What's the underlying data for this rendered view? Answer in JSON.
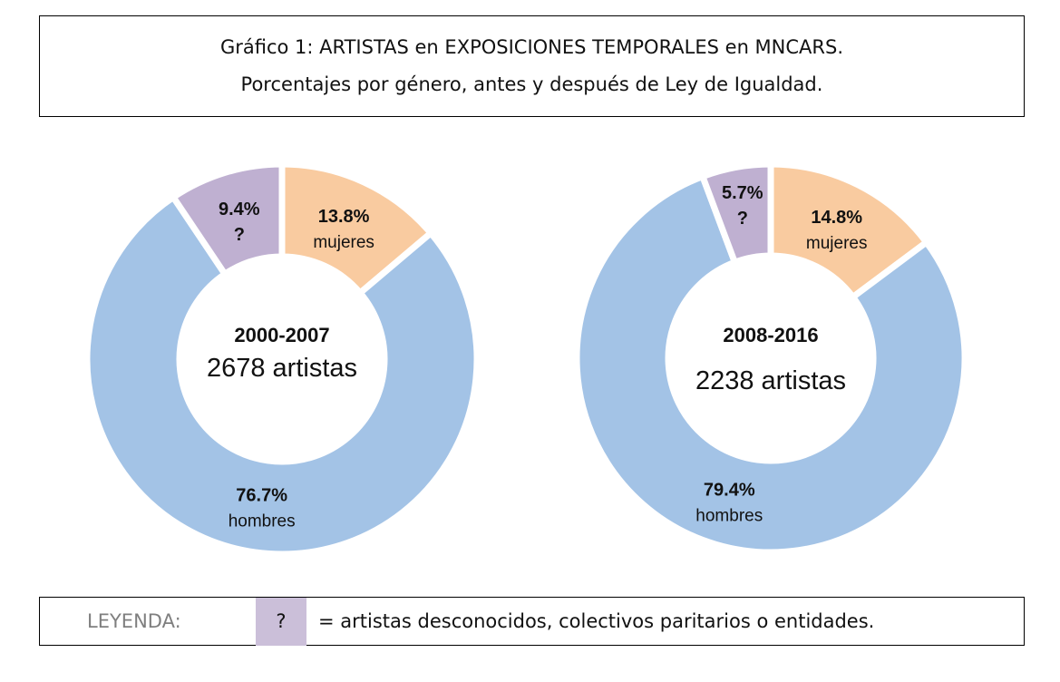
{
  "chart_data": [
    {
      "type": "pie",
      "variant": "donut",
      "title": "Gráfico 1: ARTISTAS en EXPOSICIONES TEMPORALES en MNCARS.",
      "subtitle": "Porcentajes por género, antes y después de Ley de Igualdad.",
      "period": "2000-2007",
      "total_label": "2678 artistas",
      "slices": [
        {
          "name": "mujeres",
          "value": 13.8,
          "label": "13.8%",
          "color": "#f9cba0"
        },
        {
          "name": "hombres",
          "value": 76.7,
          "label": "76.7%",
          "color": "#a3c3e6"
        },
        {
          "name": "?",
          "value": 9.4,
          "label": "9.4%",
          "color": "#bfb0d1"
        }
      ]
    },
    {
      "type": "pie",
      "variant": "donut",
      "period": "2008-2016",
      "total_label": "2238 artistas",
      "slices": [
        {
          "name": "mujeres",
          "value": 14.8,
          "label": "14.8%",
          "color": "#f9cba0"
        },
        {
          "name": "hombres",
          "value": 79.4,
          "label": "79.4%",
          "color": "#a3c3e6"
        },
        {
          "name": "?",
          "value": 5.7,
          "label": "5.7%",
          "color": "#bfb0d1"
        }
      ]
    }
  ],
  "title": {
    "line1": "Gráfico 1: ARTISTAS en EXPOSICIONES TEMPORALES en MNCARS.",
    "line2": "Porcentajes por género, antes y después de Ley de Igualdad."
  },
  "legend": {
    "label": "LEYENDA:",
    "symbol": "?",
    "text": "= artistas desconocidos, colectivos paritarios o entidades.",
    "symbol_color": "#cbbfd9"
  }
}
